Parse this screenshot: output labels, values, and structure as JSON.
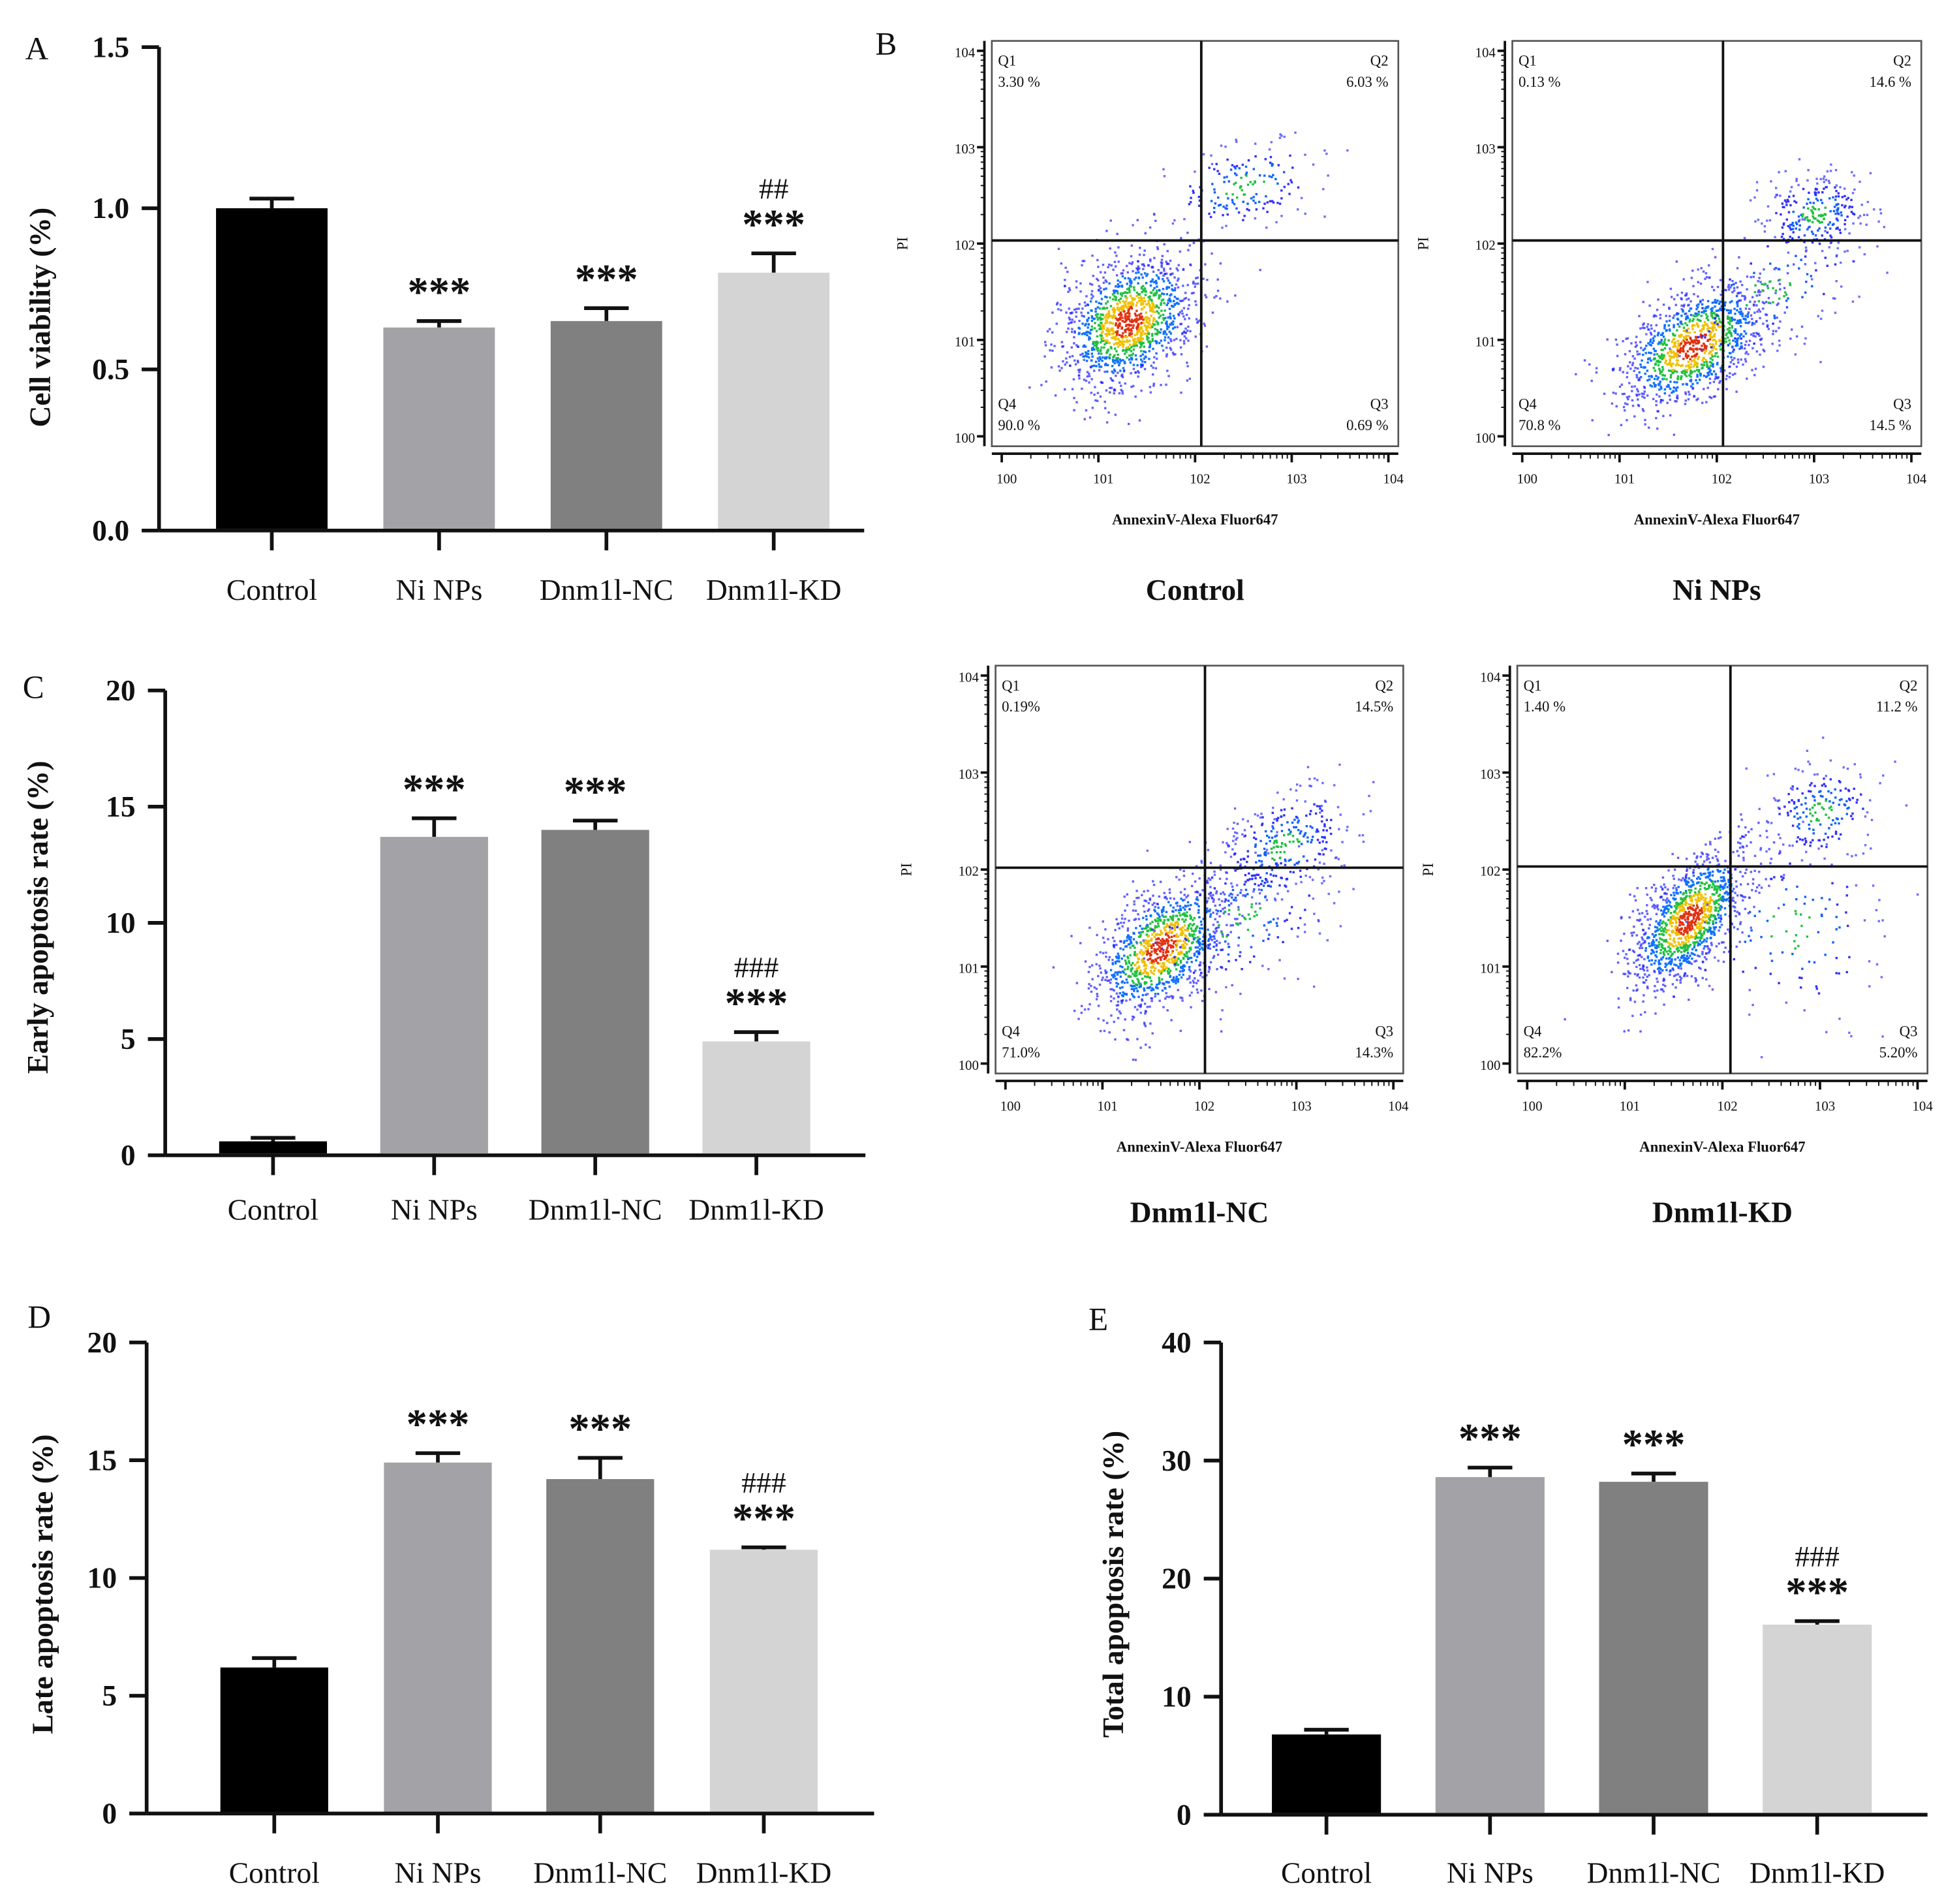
{
  "chart_data": [
    {
      "panel": "A",
      "type": "bar",
      "ylabel": "Cell viability (%)",
      "ylim": [
        0,
        1.5
      ],
      "yticks": [
        0.0,
        0.5,
        1.0,
        1.5
      ],
      "ytick_labels": [
        "0.0",
        "0.5",
        "1.0",
        "1.5"
      ],
      "categories": [
        "Control",
        "Ni NPs",
        "Dnm1l-NC",
        "Dnm1l-KD"
      ],
      "values": [
        1.0,
        0.63,
        0.65,
        0.8
      ],
      "errors": [
        0.03,
        0.02,
        0.04,
        0.06
      ],
      "colors": [
        "#000000",
        "#a3a3a7",
        "#808080",
        "#d4d4d4"
      ],
      "significance": [
        "",
        "***",
        "***",
        "***"
      ],
      "significance2": [
        "",
        "",
        "",
        "##"
      ]
    },
    {
      "panel": "B",
      "type": "scatter",
      "xlabel": "AnnexinV-Alexa Fluor647",
      "ylabel": "PI",
      "axis_ticks": [
        "10^0",
        "10^1",
        "10^2",
        "10^3",
        "10^4"
      ],
      "plots": [
        {
          "title": "Control",
          "Q1": "3.30 %",
          "Q2": "6.03 %",
          "Q3": "0.69 %",
          "Q4": "90.0 %"
        },
        {
          "title": "Ni NPs",
          "Q1": "0.13 %",
          "Q2": "14.6 %",
          "Q3": "14.5 %",
          "Q4": "70.8 %"
        },
        {
          "title": "Dnm1l-NC",
          "Q1": "0.19%",
          "Q2": "14.5%",
          "Q3": "14.3%",
          "Q4": "71.0%"
        },
        {
          "title": "Dnm1l-KD",
          "Q1": "1.40 %",
          "Q2": "11.2 %",
          "Q3": "5.20%",
          "Q4": "82.2%"
        }
      ]
    },
    {
      "panel": "C",
      "type": "bar",
      "ylabel": "Early apoptosis rate (%)",
      "ylim": [
        0,
        20
      ],
      "yticks": [
        0,
        5,
        10,
        15,
        20
      ],
      "ytick_labels": [
        "0",
        "5",
        "10",
        "15",
        "20"
      ],
      "categories": [
        "Control",
        "Ni NPs",
        "Dnm1l-NC",
        "Dnm1l-KD"
      ],
      "values": [
        0.6,
        13.7,
        14.0,
        4.9
      ],
      "errors": [
        0.15,
        0.8,
        0.4,
        0.4
      ],
      "colors": [
        "#000000",
        "#a3a3a7",
        "#808080",
        "#d4d4d4"
      ],
      "significance": [
        "",
        "***",
        "***",
        "***"
      ],
      "significance2": [
        "",
        "",
        "",
        "###"
      ]
    },
    {
      "panel": "D",
      "type": "bar",
      "ylabel": "Late apoptosis rate (%)",
      "ylim": [
        0,
        20
      ],
      "yticks": [
        0,
        5,
        10,
        15,
        20
      ],
      "ytick_labels": [
        "0",
        "5",
        "10",
        "15",
        "20"
      ],
      "categories": [
        "Control",
        "Ni NPs",
        "Dnm1l-NC",
        "Dnm1l-KD"
      ],
      "values": [
        6.2,
        14.9,
        14.2,
        11.2
      ],
      "errors": [
        0.4,
        0.4,
        0.9,
        0.1
      ],
      "colors": [
        "#000000",
        "#a3a3a7",
        "#808080",
        "#d4d4d4"
      ],
      "significance": [
        "",
        "***",
        "***",
        "***"
      ],
      "significance2": [
        "",
        "",
        "",
        "###"
      ]
    },
    {
      "panel": "E",
      "type": "bar",
      "ylabel": "Total apoptosis rate (%)",
      "ylim": [
        0,
        40
      ],
      "yticks": [
        0,
        10,
        20,
        30,
        40
      ],
      "ytick_labels": [
        "0",
        "10",
        "20",
        "30",
        "40"
      ],
      "categories": [
        "Control",
        "Ni NPs",
        "Dnm1l-NC",
        "Dnm1l-KD"
      ],
      "values": [
        6.8,
        28.6,
        28.2,
        16.1
      ],
      "errors": [
        0.4,
        0.8,
        0.7,
        0.3
      ],
      "colors": [
        "#000000",
        "#a3a3a7",
        "#808080",
        "#d4d4d4"
      ],
      "significance": [
        "",
        "***",
        "***",
        "***"
      ],
      "significance2": [
        "",
        "",
        "",
        "###"
      ]
    }
  ]
}
